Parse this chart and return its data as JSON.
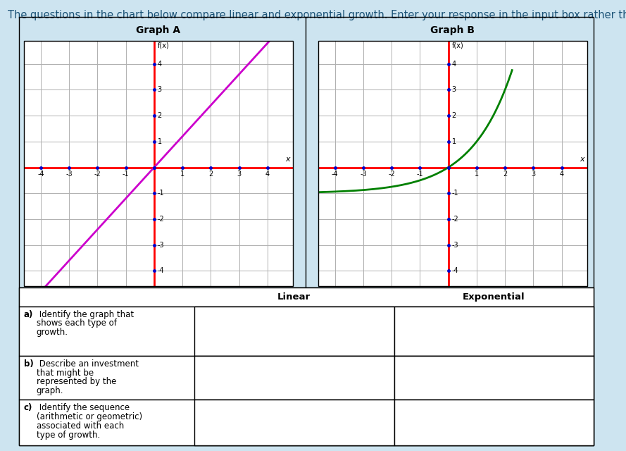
{
  "background_color": "#cde4f0",
  "header_text": "The questions in the chart below compare linear and exponential growth. Enter your response in the input box rather than the chart.",
  "header_color": "#1a5276",
  "header_fontsize": 10.5,
  "graph_a_title": "Graph A",
  "graph_b_title": "Graph B",
  "xlim": [
    -4.6,
    4.9
  ],
  "ylim": [
    -4.6,
    4.9
  ],
  "x_ticks": [
    -4,
    -3,
    -2,
    -1,
    0,
    1,
    2,
    3,
    4
  ],
  "y_ticks": [
    -4,
    -3,
    -2,
    -1,
    0,
    1,
    2,
    3,
    4
  ],
  "axis_color": "red",
  "grid_color": "#b0b0b0",
  "linear_color": "#cc00cc",
  "exponential_color": "#008000",
  "linear_slope": 1.2,
  "exp_base": 2.0,
  "exp_shift": 0.0,
  "fx_label": "f(x)",
  "x_label": "x",
  "col_headers": [
    "Linear",
    "Exponential"
  ],
  "row_labels_bold": [
    "a)",
    "b)",
    "c)"
  ],
  "row_labels_text": [
    " Identify the graph that\n   shows each type of\n   growth.",
    " Describe an investment\n   that might be\n   represented by the\n   graph.",
    " Identify the sequence\n   (arithmetic or geometric)\n   associated with each\n   type of growth."
  ],
  "table_bg": "#ffffff",
  "title_fontsize": 10,
  "tick_fontsize": 7,
  "dot_color": "#0000cc",
  "dot_size": 2.5
}
